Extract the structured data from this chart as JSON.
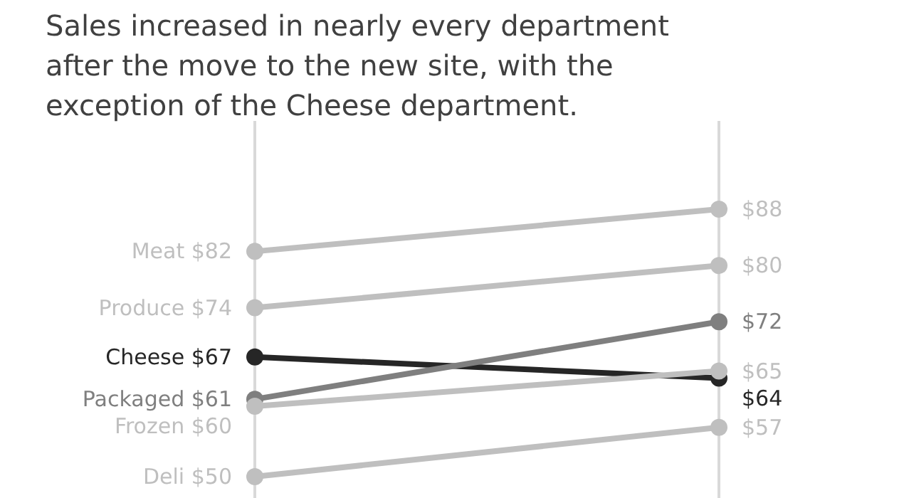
{
  "chart_data": {
    "type": "line",
    "title": "Sales increased in nearly every department after the move to the new site, with the exception of the Cheese department.",
    "categories": [
      null,
      null
    ],
    "marker": "circle",
    "legend": false,
    "series": [
      {
        "name": "Meat",
        "color": "#bfbfbf",
        "values": [
          82,
          88
        ],
        "value_labels": [
          "$82",
          "$88"
        ]
      },
      {
        "name": "Produce",
        "color": "#bfbfbf",
        "values": [
          74,
          80
        ],
        "value_labels": [
          "$74",
          "$80"
        ]
      },
      {
        "name": "Cheese",
        "color": "#262626",
        "values": [
          67,
          64
        ],
        "value_labels": [
          "$67",
          "$64"
        ]
      },
      {
        "name": "Packaged",
        "color": "#7f7f7f",
        "values": [
          61,
          72
        ],
        "value_labels": [
          "$61",
          "$72"
        ]
      },
      {
        "name": "Frozen",
        "color": "#bfbfbf",
        "values": [
          60,
          65
        ],
        "value_labels": [
          "$60",
          "$65"
        ]
      },
      {
        "name": "Deli",
        "color": "#bfbfbf",
        "values": [
          50,
          57
        ],
        "value_labels": [
          "$50",
          "$57"
        ]
      }
    ]
  }
}
